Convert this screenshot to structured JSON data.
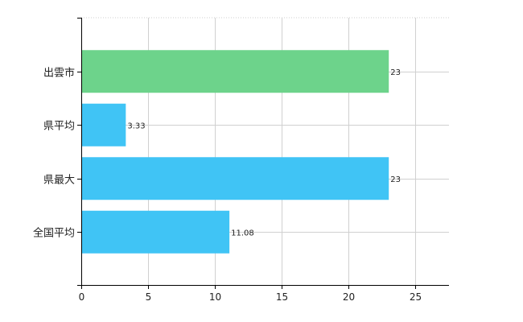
{
  "chart_data": {
    "type": "bar",
    "orientation": "horizontal",
    "categories": [
      "出雲市",
      "県平均",
      "県最大",
      "全国平均"
    ],
    "values": [
      23,
      3.33,
      23,
      11.08
    ],
    "value_labels": [
      "23",
      "3.33",
      "23",
      "11.08"
    ],
    "bar_colors": [
      "#6dd38b",
      "#40c4f5",
      "#40c4f5",
      "#40c4f5"
    ],
    "xlim": [
      0,
      27.5
    ],
    "xticks": [
      0,
      5,
      10,
      15,
      20,
      25
    ],
    "xtick_labels": [
      "0",
      "5",
      "10",
      "15",
      "20",
      "25"
    ],
    "title": "",
    "xlabel": "",
    "ylabel": "",
    "grid": true,
    "grid_style": "dotted-vertical-and-category-lines"
  }
}
